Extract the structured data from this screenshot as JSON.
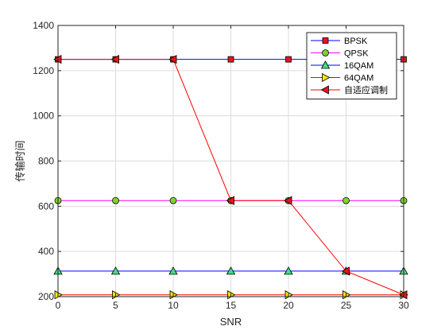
{
  "chart_data": {
    "type": "line",
    "xlabel": "SNR",
    "ylabel": "传输时间",
    "x": [
      0,
      5,
      10,
      15,
      20,
      25,
      30
    ],
    "xlim": [
      0,
      30
    ],
    "ylim": [
      200,
      1400
    ],
    "xticks": [
      "0",
      "5",
      "10",
      "15",
      "20",
      "25",
      "30"
    ],
    "yticks": [
      "200",
      "400",
      "600",
      "800",
      "1000",
      "1200",
      "1400"
    ],
    "grid": true,
    "legend_position": "top-right",
    "series": [
      {
        "name": "BPSK",
        "values": [
          1250,
          1250,
          1250,
          1250,
          1250,
          1250,
          1250
        ],
        "color": "#0000ff",
        "marker": "square",
        "marker_color": "#e8141c"
      },
      {
        "name": "QPSK",
        "values": [
          625,
          625,
          625,
          625,
          625,
          625,
          625
        ],
        "color": "#ff00ff",
        "marker": "circle",
        "marker_color": "#7ad62a"
      },
      {
        "name": "16QAM",
        "values": [
          313,
          313,
          313,
          313,
          313,
          313,
          313
        ],
        "color": "#0000ff",
        "marker": "triangle-up",
        "marker_color": "#3fe07f"
      },
      {
        "name": "64QAM",
        "values": [
          208,
          208,
          208,
          208,
          208,
          208,
          208
        ],
        "color": "#ff0000",
        "marker": "triangle-right",
        "marker_color": "#f7e40c"
      },
      {
        "name": "自适应调制",
        "values": [
          1250,
          1250,
          1250,
          625,
          625,
          313,
          208
        ],
        "color": "#ff0000",
        "marker": "triangle-left",
        "marker_color": "#e8141c"
      }
    ]
  }
}
